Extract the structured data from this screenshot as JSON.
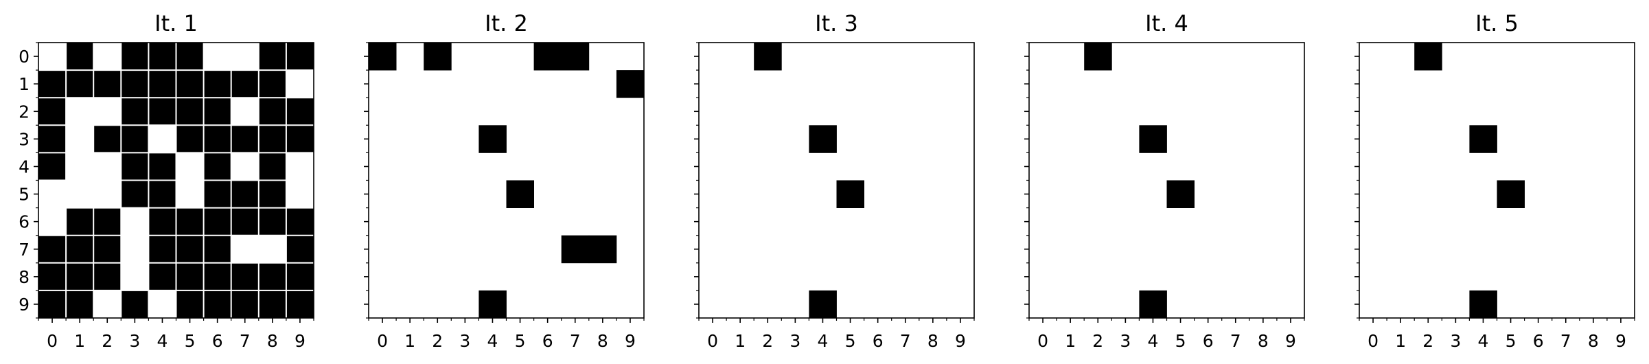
{
  "chart_data": {
    "type": "heatmap",
    "colormap": {
      "0": "#ffffff",
      "1": "#000000"
    },
    "grid_lines_color": "#ffffff",
    "axis_ticks": [
      0,
      1,
      2,
      3,
      4,
      5,
      6,
      7,
      8,
      9
    ],
    "panels": [
      {
        "title": "It. 1",
        "show_y_tick_labels": true,
        "grid_lines": true,
        "matrix": [
          [
            0,
            1,
            0,
            1,
            1,
            1,
            0,
            0,
            1,
            1
          ],
          [
            1,
            1,
            1,
            1,
            1,
            1,
            1,
            1,
            1,
            0
          ],
          [
            1,
            0,
            0,
            1,
            1,
            1,
            1,
            0,
            1,
            1
          ],
          [
            1,
            0,
            1,
            1,
            0,
            1,
            1,
            1,
            1,
            1
          ],
          [
            1,
            0,
            0,
            1,
            1,
            0,
            1,
            0,
            1,
            0
          ],
          [
            0,
            0,
            0,
            1,
            1,
            0,
            1,
            1,
            1,
            0
          ],
          [
            0,
            1,
            1,
            0,
            1,
            1,
            1,
            1,
            1,
            1
          ],
          [
            1,
            1,
            1,
            0,
            1,
            1,
            1,
            0,
            0,
            1
          ],
          [
            1,
            1,
            1,
            0,
            1,
            1,
            1,
            1,
            1,
            1
          ],
          [
            1,
            1,
            0,
            1,
            0,
            1,
            1,
            1,
            1,
            1
          ]
        ]
      },
      {
        "title": "It. 2",
        "show_y_tick_labels": false,
        "grid_lines": false,
        "matrix": [
          [
            1,
            0,
            1,
            0,
            0,
            0,
            1,
            1,
            0,
            0
          ],
          [
            0,
            0,
            0,
            0,
            0,
            0,
            0,
            0,
            0,
            1
          ],
          [
            0,
            0,
            0,
            0,
            0,
            0,
            0,
            0,
            0,
            0
          ],
          [
            0,
            0,
            0,
            0,
            1,
            0,
            0,
            0,
            0,
            0
          ],
          [
            0,
            0,
            0,
            0,
            0,
            0,
            0,
            0,
            0,
            0
          ],
          [
            0,
            0,
            0,
            0,
            0,
            1,
            0,
            0,
            0,
            0
          ],
          [
            0,
            0,
            0,
            0,
            0,
            0,
            0,
            0,
            0,
            0
          ],
          [
            0,
            0,
            0,
            0,
            0,
            0,
            0,
            1,
            1,
            0
          ],
          [
            0,
            0,
            0,
            0,
            0,
            0,
            0,
            0,
            0,
            0
          ],
          [
            0,
            0,
            0,
            0,
            1,
            0,
            0,
            0,
            0,
            0
          ]
        ]
      },
      {
        "title": "It. 3",
        "show_y_tick_labels": false,
        "grid_lines": false,
        "matrix": [
          [
            0,
            0,
            1,
            0,
            0,
            0,
            0,
            0,
            0,
            0
          ],
          [
            0,
            0,
            0,
            0,
            0,
            0,
            0,
            0,
            0,
            0
          ],
          [
            0,
            0,
            0,
            0,
            0,
            0,
            0,
            0,
            0,
            0
          ],
          [
            0,
            0,
            0,
            0,
            1,
            0,
            0,
            0,
            0,
            0
          ],
          [
            0,
            0,
            0,
            0,
            0,
            0,
            0,
            0,
            0,
            0
          ],
          [
            0,
            0,
            0,
            0,
            0,
            1,
            0,
            0,
            0,
            0
          ],
          [
            0,
            0,
            0,
            0,
            0,
            0,
            0,
            0,
            0,
            0
          ],
          [
            0,
            0,
            0,
            0,
            0,
            0,
            0,
            0,
            0,
            0
          ],
          [
            0,
            0,
            0,
            0,
            0,
            0,
            0,
            0,
            0,
            0
          ],
          [
            0,
            0,
            0,
            0,
            1,
            0,
            0,
            0,
            0,
            0
          ]
        ]
      },
      {
        "title": "It. 4",
        "show_y_tick_labels": false,
        "grid_lines": false,
        "matrix": [
          [
            0,
            0,
            1,
            0,
            0,
            0,
            0,
            0,
            0,
            0
          ],
          [
            0,
            0,
            0,
            0,
            0,
            0,
            0,
            0,
            0,
            0
          ],
          [
            0,
            0,
            0,
            0,
            0,
            0,
            0,
            0,
            0,
            0
          ],
          [
            0,
            0,
            0,
            0,
            1,
            0,
            0,
            0,
            0,
            0
          ],
          [
            0,
            0,
            0,
            0,
            0,
            0,
            0,
            0,
            0,
            0
          ],
          [
            0,
            0,
            0,
            0,
            0,
            1,
            0,
            0,
            0,
            0
          ],
          [
            0,
            0,
            0,
            0,
            0,
            0,
            0,
            0,
            0,
            0
          ],
          [
            0,
            0,
            0,
            0,
            0,
            0,
            0,
            0,
            0,
            0
          ],
          [
            0,
            0,
            0,
            0,
            0,
            0,
            0,
            0,
            0,
            0
          ],
          [
            0,
            0,
            0,
            0,
            1,
            0,
            0,
            0,
            0,
            0
          ]
        ]
      },
      {
        "title": "It. 5",
        "show_y_tick_labels": false,
        "grid_lines": false,
        "matrix": [
          [
            0,
            0,
            1,
            0,
            0,
            0,
            0,
            0,
            0,
            0
          ],
          [
            0,
            0,
            0,
            0,
            0,
            0,
            0,
            0,
            0,
            0
          ],
          [
            0,
            0,
            0,
            0,
            0,
            0,
            0,
            0,
            0,
            0
          ],
          [
            0,
            0,
            0,
            0,
            1,
            0,
            0,
            0,
            0,
            0
          ],
          [
            0,
            0,
            0,
            0,
            0,
            0,
            0,
            0,
            0,
            0
          ],
          [
            0,
            0,
            0,
            0,
            0,
            1,
            0,
            0,
            0,
            0
          ],
          [
            0,
            0,
            0,
            0,
            0,
            0,
            0,
            0,
            0,
            0
          ],
          [
            0,
            0,
            0,
            0,
            0,
            0,
            0,
            0,
            0,
            0
          ],
          [
            0,
            0,
            0,
            0,
            0,
            0,
            0,
            0,
            0,
            0
          ],
          [
            0,
            0,
            0,
            0,
            1,
            0,
            0,
            0,
            0,
            0
          ]
        ]
      }
    ]
  }
}
